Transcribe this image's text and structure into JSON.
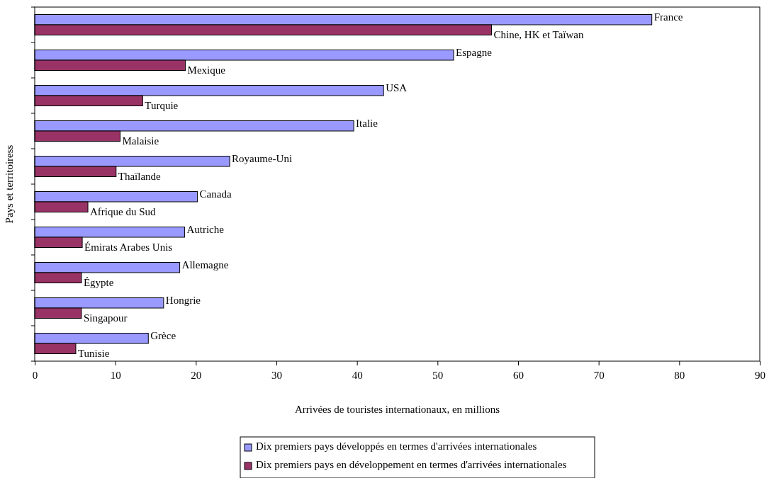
{
  "chart_data": {
    "type": "bar",
    "orientation": "horizontal",
    "ylabel": "Pays et territoiress",
    "xlabel": "Arrivées de touristes internationaux, en millions",
    "categories": [
      null,
      null,
      null,
      null,
      null,
      null,
      null,
      null,
      null,
      null
    ],
    "series": [
      {
        "name": "Dix premiers pays développés en termes d'arrivées internationales",
        "color": "#9999ff",
        "values": [
          76.6,
          52.0,
          43.3,
          39.6,
          24.2,
          20.2,
          18.6,
          18.0,
          16.0,
          14.1
        ]
      },
      {
        "name": "Dix premiers pays en développement en termes d'arrivées internationales",
        "color": "#993366",
        "values": [
          56.7,
          18.7,
          13.4,
          10.6,
          10.1,
          6.6,
          5.9,
          5.8,
          5.8,
          5.1
        ]
      }
    ],
    "annotations": [
      {
        "text": "France",
        "x": 76.6
      },
      {
        "text": "Chine, HK et Taïwan",
        "x": 56.7
      },
      {
        "text": "Espagne",
        "x": 52.0
      },
      {
        "text": "Mexique",
        "x": 18.7
      },
      {
        "text": "USA",
        "x": 43.3
      },
      {
        "text": "Turquie",
        "x": 13.4
      },
      {
        "text": "Italie",
        "x": 39.6
      },
      {
        "text": "Malaisie",
        "x": 10.6
      },
      {
        "text": "Royaume-Uni",
        "x": 24.2
      },
      {
        "text": "Thaïlande",
        "x": 10.1
      },
      {
        "text": "Canada",
        "x": 20.2
      },
      {
        "text": "Afrique du Sud",
        "x": 6.6
      },
      {
        "text": "Autriche",
        "x": 18.6
      },
      {
        "text": "Émirats Arabes Unis",
        "x": 5.9
      },
      {
        "text": "Allemagne",
        "x": 18.0
      },
      {
        "text": "Égypte",
        "x": 5.8
      },
      {
        "text": "Hongrie",
        "x": 16.0
      },
      {
        "text": "Singapour",
        "x": 5.8
      },
      {
        "text": "Grèce",
        "x": 14.1
      },
      {
        "text": "Tunisie",
        "x": 5.1
      }
    ],
    "xlim": [
      0,
      90
    ],
    "xticks": [
      0,
      10,
      20,
      30,
      40,
      50,
      60,
      70,
      80,
      90
    ],
    "grid": false,
    "legend": "bottom"
  }
}
